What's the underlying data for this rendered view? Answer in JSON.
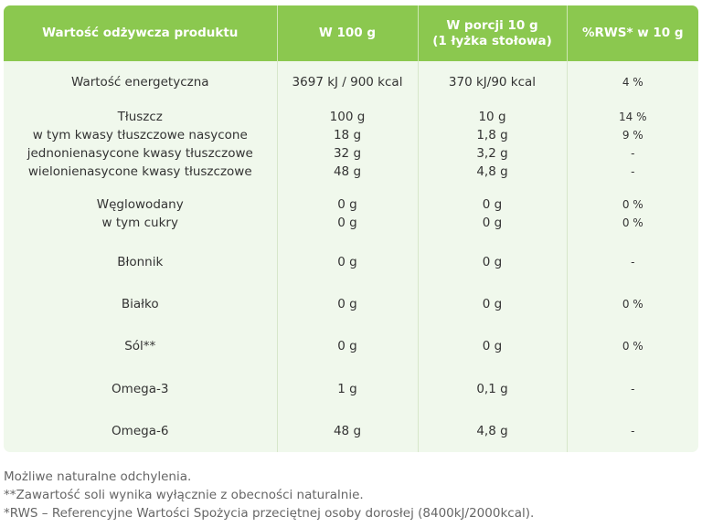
{
  "header": {
    "col1": "Wartość odżywcza produktu",
    "col2": "W 100 g",
    "col3_line1": "W porcji 10 g",
    "col3_line2": "(1 łyżka stołowa)",
    "col4": "%RWS* w 10 g"
  },
  "rows": [
    {
      "name": [
        "Wartość energetyczna"
      ],
      "per100": [
        "3697 kJ / 900 kcal"
      ],
      "portion": [
        "370 kJ/90 kcal"
      ],
      "rws": [
        "4 %"
      ]
    },
    {
      "name": [
        "Tłuszcz",
        "w tym kwasy tłuszczowe nasycone",
        "jednonienasycone kwasy tłuszczowe",
        "wielonienasycone kwasy tłuszczowe"
      ],
      "per100": [
        "100 g",
        "18 g",
        "32 g",
        "48 g"
      ],
      "portion": [
        "10 g",
        "1,8 g",
        "3,2 g",
        "4,8 g"
      ],
      "rws": [
        "14 %",
        "9 %",
        "-",
        "-"
      ]
    },
    {
      "name": [
        "Węglowodany",
        "w tym cukry"
      ],
      "per100": [
        "0 g",
        "0 g"
      ],
      "portion": [
        "0 g",
        "0 g"
      ],
      "rws": [
        "0 %",
        "0 %"
      ]
    },
    {
      "name": [
        "Błonnik"
      ],
      "per100": [
        "0 g"
      ],
      "portion": [
        "0 g"
      ],
      "rws": [
        "-"
      ]
    },
    {
      "name": [
        "Białko"
      ],
      "per100": [
        "0 g"
      ],
      "portion": [
        "0 g"
      ],
      "rws": [
        "0 %"
      ]
    },
    {
      "name": [
        "Sól**"
      ],
      "per100": [
        "0 g"
      ],
      "portion": [
        "0 g"
      ],
      "rws": [
        "0 %"
      ]
    },
    {
      "name": [
        "Omega-3"
      ],
      "per100": [
        "1 g"
      ],
      "portion": [
        "0,1 g"
      ],
      "rws": [
        "-"
      ]
    },
    {
      "name": [
        "Omega-6"
      ],
      "per100": [
        "48 g"
      ],
      "portion": [
        "4,8 g"
      ],
      "rws": [
        "-"
      ]
    }
  ],
  "notes": [
    "Możliwe naturalne odchylenia.",
    "**Zawartość soli wynika wyłącznie z obecności naturalnie.",
    "*RWS – Referencyjne Wartości Spożycia przeciętnej osoby dorosłej (8400kJ/2000kcal)."
  ]
}
